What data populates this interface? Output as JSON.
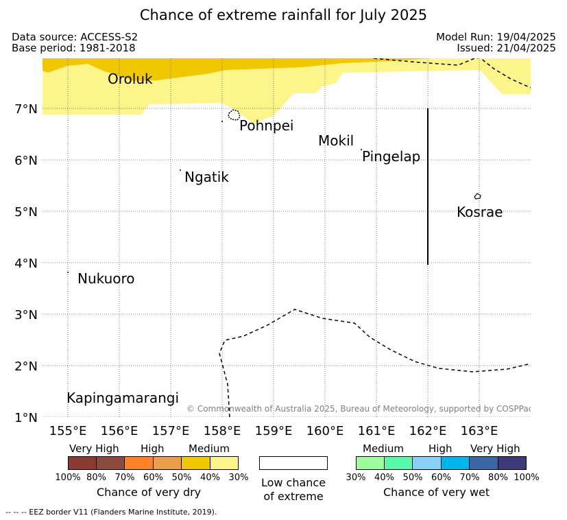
{
  "header": {
    "title": "Chance of extreme rainfall for July 2025",
    "data_source": "Data source: ACCESS-S2",
    "base_period": "Base period: 1981-2018",
    "model_run": "Model Run: 19/04/2025",
    "issued": "Issued: 21/04/2025"
  },
  "map": {
    "lon_ticks": [
      "155°E",
      "156°E",
      "157°E",
      "158°E",
      "159°E",
      "160°E",
      "161°E",
      "162°E",
      "163°E"
    ],
    "lat_ticks": [
      "1°N",
      "2°N",
      "3°N",
      "4°N",
      "5°N",
      "6°N",
      "7°N"
    ],
    "places": {
      "oroluk": "Oroluk",
      "pohnpei": "Pohnpei",
      "mokil": "Mokil",
      "pingelap": "Pingelap",
      "ngatik": "Ngatik",
      "kosrae": "Kosrae",
      "nukuoro": "Nukuoro",
      "kapingamarangi": "Kapingamarangi"
    },
    "copyright": "© Commonwealth of Australia 2025, Bureau of Meteorology, supported by COSPPac",
    "colors": {
      "medium_dry_shading": "#f0c800",
      "light_dry_shading": "#fdf48a"
    }
  },
  "legend": {
    "dry": {
      "categories": [
        "Very High",
        "High",
        "Medium"
      ],
      "ticks": [
        "100%",
        "80%",
        "70%",
        "60%",
        "50%",
        "40%",
        "30%"
      ],
      "title": "Chance of very dry",
      "colors": [
        "#8b3a30",
        "#8b4a3a",
        "#fd8228",
        "#ee9e4a",
        "#f0c800",
        "#fdf48a"
      ]
    },
    "low": {
      "line1": "Low chance",
      "line2": "of extreme"
    },
    "wet": {
      "categories": [
        "Medium",
        "High",
        "Very High"
      ],
      "ticks": [
        "30%",
        "40%",
        "50%",
        "60%",
        "70%",
        "80%",
        "100%"
      ],
      "title": "Chance of very wet",
      "colors": [
        "#9ffb9b",
        "#58f9a9",
        "#8bcffb",
        "#00b4ee",
        "#3a66a6",
        "#3c3a78"
      ]
    }
  },
  "footer": {
    "eez_note": "--  --  -- EEZ border V11 (Flanders Marine Institute, 2019)."
  }
}
